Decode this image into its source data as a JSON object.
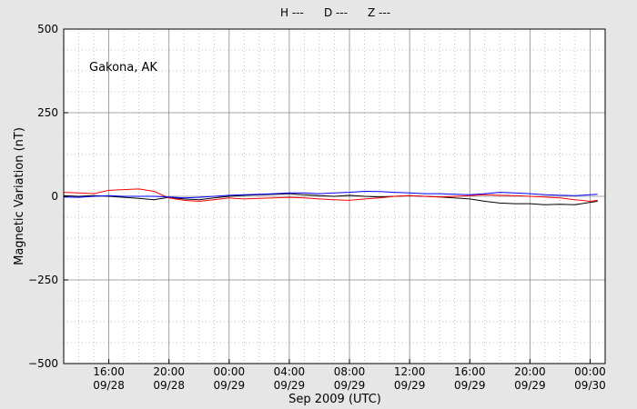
{
  "chart_data": {
    "type": "line",
    "legend": [
      {
        "label": "H ---",
        "color": "#000000"
      },
      {
        "label": "D ---",
        "color": "#ff0000"
      },
      {
        "label": "Z ---",
        "color": "#0000ff"
      }
    ],
    "legend_placement": "top-center",
    "annotation": "Gakona, AK",
    "ylabel": "Magnetic Variation (nT)",
    "xlabel": "Sep 2009 (UTC)",
    "ylim": [
      -500,
      500
    ],
    "y_ticks": [
      500,
      250,
      0,
      -250,
      -500
    ],
    "y_tick_labels": [
      "500",
      "250",
      "0",
      "−250",
      "−500"
    ],
    "x_range_hours": [
      -11.0,
      25.0
    ],
    "x_ticks": [
      {
        "hour": -8,
        "time": "16:00",
        "date": "09/28"
      },
      {
        "hour": -4,
        "time": "20:00",
        "date": "09/28"
      },
      {
        "hour": 0,
        "time": "00:00",
        "date": "09/29"
      },
      {
        "hour": 4,
        "time": "04:00",
        "date": "09/29"
      },
      {
        "hour": 8,
        "time": "08:00",
        "date": "09/29"
      },
      {
        "hour": 12,
        "time": "12:00",
        "date": "09/29"
      },
      {
        "hour": 16,
        "time": "16:00",
        "date": "09/29"
      },
      {
        "hour": 20,
        "time": "20:00",
        "date": "09/29"
      },
      {
        "hour": 24,
        "time": "00:00",
        "date": "09/30"
      }
    ],
    "grid": true,
    "series": [
      {
        "name": "H",
        "color": "#000000",
        "x": [
          -11,
          -10,
          -9,
          -8,
          -7,
          -6,
          -5,
          -4,
          -3,
          -2,
          -1,
          0,
          1,
          2,
          3,
          4,
          5,
          6,
          7,
          8,
          9,
          10,
          11,
          12,
          13,
          14,
          15,
          16,
          17,
          18,
          19,
          20,
          21,
          22,
          23,
          24,
          24.5
        ],
        "y": [
          2,
          0,
          2,
          0,
          -3,
          -6,
          -10,
          -3,
          -8,
          -10,
          -5,
          0,
          3,
          5,
          6,
          8,
          5,
          2,
          0,
          3,
          0,
          -2,
          0,
          2,
          0,
          -2,
          -5,
          -8,
          -15,
          -20,
          -22,
          -22,
          -25,
          -24,
          -25,
          -18,
          -15
        ]
      },
      {
        "name": "D",
        "color": "#ff0000",
        "x": [
          -11,
          -10,
          -9,
          -8,
          -7,
          -6,
          -5,
          -4,
          -3,
          -2,
          -1,
          0,
          1,
          2,
          3,
          4,
          5,
          6,
          7,
          8,
          9,
          10,
          11,
          12,
          13,
          14,
          15,
          16,
          17,
          18,
          19,
          20,
          21,
          22,
          23,
          24,
          24.5
        ],
        "y": [
          12,
          10,
          8,
          18,
          20,
          22,
          15,
          -5,
          -12,
          -15,
          -10,
          -5,
          -8,
          -6,
          -5,
          -3,
          -5,
          -8,
          -10,
          -12,
          -8,
          -5,
          0,
          2,
          0,
          -2,
          0,
          2,
          5,
          3,
          2,
          0,
          -2,
          -5,
          -10,
          -15,
          -12
        ]
      },
      {
        "name": "Z",
        "color": "#0000ff",
        "x": [
          -11,
          -10,
          -9,
          -8,
          -7,
          -6,
          -5,
          -4,
          -3,
          -2,
          -1,
          0,
          1,
          2,
          3,
          4,
          5,
          6,
          7,
          8,
          9,
          10,
          11,
          12,
          13,
          14,
          15,
          16,
          17,
          18,
          19,
          20,
          21,
          22,
          23,
          24,
          24.5
        ],
        "y": [
          -2,
          -3,
          0,
          2,
          0,
          0,
          0,
          -2,
          -5,
          -3,
          0,
          3,
          5,
          6,
          8,
          10,
          10,
          8,
          10,
          12,
          15,
          14,
          12,
          10,
          8,
          8,
          6,
          5,
          8,
          12,
          10,
          8,
          5,
          3,
          2,
          5,
          6
        ]
      }
    ]
  }
}
